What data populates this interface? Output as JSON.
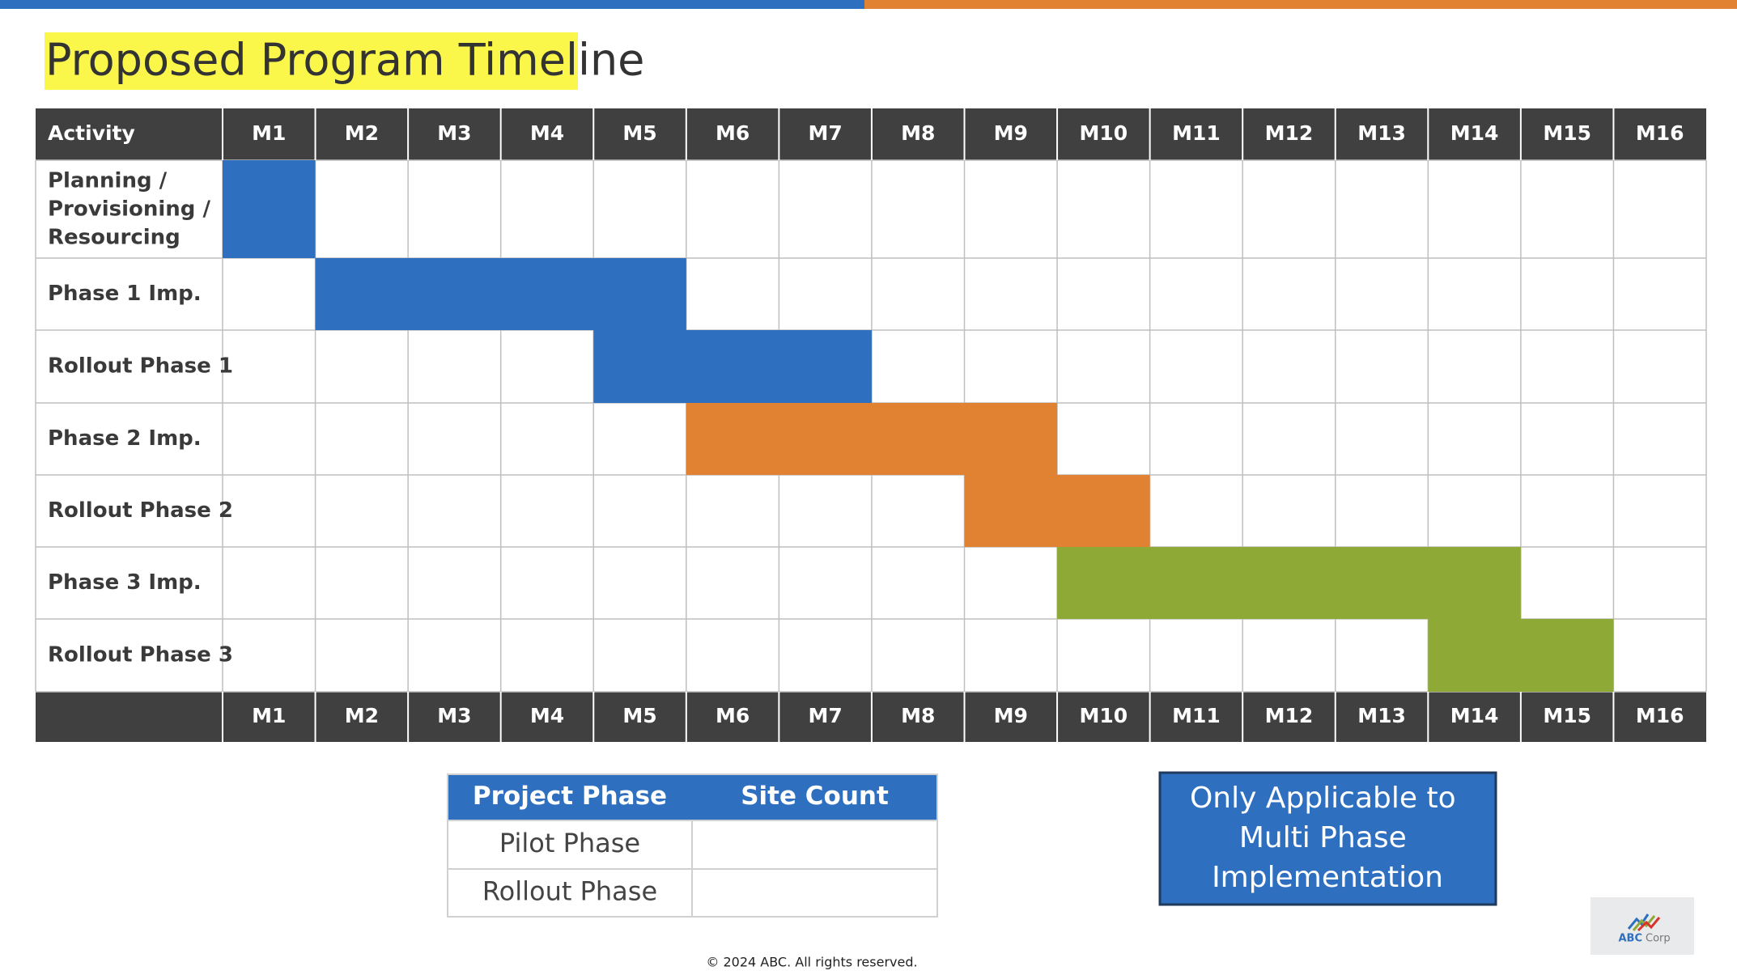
{
  "chart_data": {
    "type": "gantt",
    "title": "Proposed Program Timeline",
    "activity_header": "Activity",
    "categories": [
      "M1",
      "M2",
      "M3",
      "M4",
      "M5",
      "M6",
      "M7",
      "M8",
      "M9",
      "M10",
      "M11",
      "M12",
      "M13",
      "M14",
      "M15",
      "M16"
    ],
    "tasks": [
      {
        "name": "Planning / Provisioning / Resourcing",
        "start": 1,
        "end": 1,
        "color": "#2e6fbf"
      },
      {
        "name": "Phase 1  Imp.",
        "start": 2,
        "end": 5,
        "color": "#2e6fbf"
      },
      {
        "name": "Rollout Phase 1",
        "start": 5,
        "end": 7,
        "color": "#2e6fbf"
      },
      {
        "name": "Phase 2  Imp.",
        "start": 6,
        "end": 9,
        "color": "#e08232"
      },
      {
        "name": "Rollout Phase 2",
        "start": 9,
        "end": 10,
        "color": "#e08232"
      },
      {
        "name": "Phase 3  Imp.",
        "start": 10,
        "end": 14,
        "color": "#8ea935"
      },
      {
        "name": "Rollout Phase 3",
        "start": 14,
        "end": 15,
        "color": "#8ea935"
      }
    ]
  },
  "phase_table": {
    "headers": [
      "Project Phase",
      "Site Count"
    ],
    "rows": [
      "Pilot Phase",
      "Rollout Phase"
    ]
  },
  "callout": "Only Applicable to Multi Phase Implementation",
  "logo": {
    "brand": "ABC",
    "suffix": "Corp"
  },
  "footer": "© 2024 ABC. All rights reserved."
}
